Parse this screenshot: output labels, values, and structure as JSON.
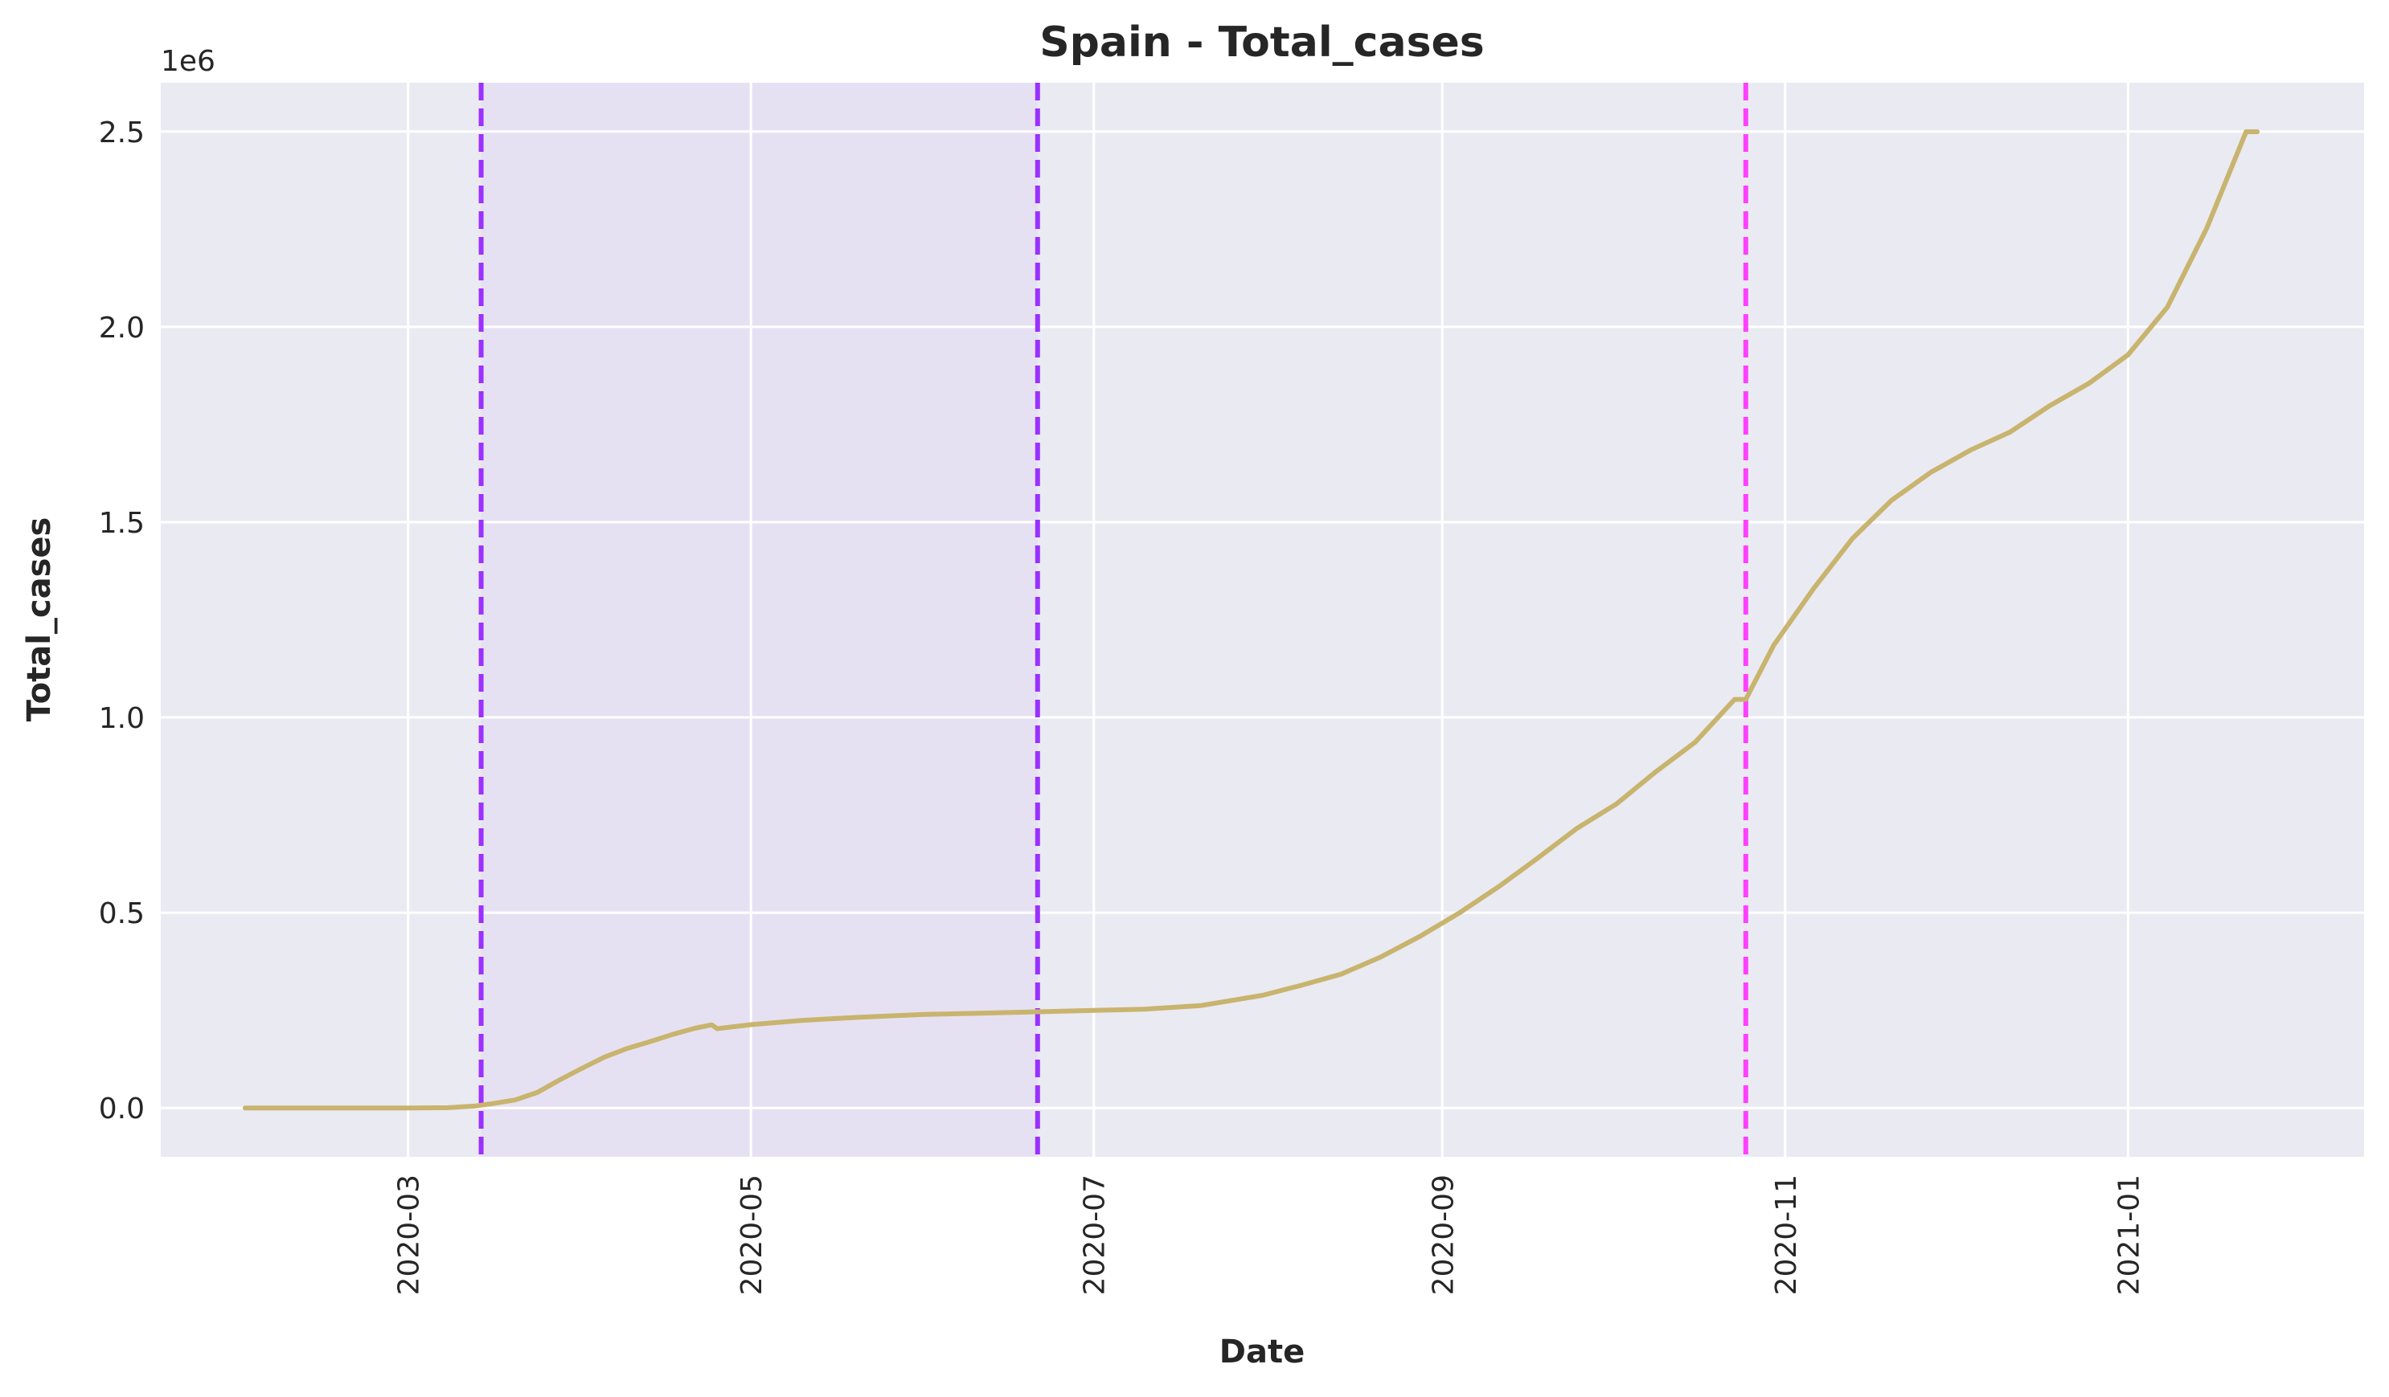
{
  "chart_data": {
    "type": "line",
    "title": "Spain - Total_cases",
    "xlabel": "Date",
    "ylabel": "Total_cases",
    "y_offset_label": "1e6",
    "grid": true,
    "x_ticks": [
      "2020-03",
      "2020-05",
      "2020-07",
      "2020-09",
      "2020-11",
      "2021-01"
    ],
    "y_ticks": [
      "0.0",
      "0.5",
      "1.0",
      "1.5",
      "2.0",
      "2.5"
    ],
    "xlim": [
      "2020-01-17",
      "2021-02-12"
    ],
    "ylim": [
      -125000,
      2625000
    ],
    "colors": {
      "plot_background": "#eaeaf2",
      "grid": "#ffffff",
      "line": "#c8b46e",
      "shaded_span": "#e6e1f2",
      "vline_purple": "#9b30ff",
      "vline_magenta": "#ff40ff"
    },
    "shaded_span": {
      "start": "2020-03-14",
      "end": "2020-06-21"
    },
    "vlines": [
      {
        "date": "2020-03-14",
        "color": "#9b30ff"
      },
      {
        "date": "2020-06-21",
        "color": "#9b30ff"
      },
      {
        "date": "2020-10-25",
        "color": "#ff40ff"
      }
    ],
    "series": [
      {
        "points": [
          [
            "2020-02-01",
            1
          ],
          [
            "2020-02-15",
            2
          ],
          [
            "2020-03-01",
            84
          ],
          [
            "2020-03-08",
            589
          ],
          [
            "2020-03-13",
            5232
          ],
          [
            "2020-03-16",
            11178
          ],
          [
            "2020-03-20",
            20410
          ],
          [
            "2020-03-24",
            39673
          ],
          [
            "2020-03-28",
            72248
          ],
          [
            "2020-04-01",
            102136
          ],
          [
            "2020-04-05",
            130759
          ],
          [
            "2020-04-09",
            152446
          ],
          [
            "2020-04-13",
            169496
          ],
          [
            "2020-04-17",
            188068
          ],
          [
            "2020-04-21",
            204178
          ],
          [
            "2020-04-24",
            213024
          ],
          [
            "2020-04-25",
            202990
          ],
          [
            "2020-05-01",
            213435
          ],
          [
            "2020-05-10",
            224350
          ],
          [
            "2020-05-20",
            232037
          ],
          [
            "2020-06-01",
            239638
          ],
          [
            "2020-06-10",
            242280
          ],
          [
            "2020-06-21",
            246272
          ],
          [
            "2020-07-01",
            249659
          ],
          [
            "2020-07-10",
            253056
          ],
          [
            "2020-07-20",
            262000
          ],
          [
            "2020-07-31",
            288522
          ],
          [
            "2020-08-07",
            314362
          ],
          [
            "2020-08-14",
            342813
          ],
          [
            "2020-08-21",
            386054
          ],
          [
            "2020-08-28",
            439286
          ],
          [
            "2020-09-04",
            498989
          ],
          [
            "2020-09-11",
            566326
          ],
          [
            "2020-09-18",
            640040
          ],
          [
            "2020-09-25",
            716481
          ],
          [
            "2020-10-02",
            778607
          ],
          [
            "2020-10-09",
            861112
          ],
          [
            "2020-10-16",
            936560
          ],
          [
            "2020-10-23",
            1046132
          ],
          [
            "2020-10-25",
            1046132
          ],
          [
            "2020-10-30",
            1185678
          ],
          [
            "2020-11-06",
            1328832
          ],
          [
            "2020-11-13",
            1458591
          ],
          [
            "2020-11-20",
            1556730
          ],
          [
            "2020-11-27",
            1628208
          ],
          [
            "2020-12-04",
            1684647
          ],
          [
            "2020-12-11",
            1730575
          ],
          [
            "2020-12-18",
            1797236
          ],
          [
            "2020-12-25",
            1854951
          ],
          [
            "2021-01-01",
            1928265
          ],
          [
            "2021-01-08",
            2050360
          ],
          [
            "2021-01-15",
            2252164
          ],
          [
            "2021-01-22",
            2499560
          ],
          [
            "2021-01-24",
            2499560
          ]
        ]
      }
    ]
  }
}
